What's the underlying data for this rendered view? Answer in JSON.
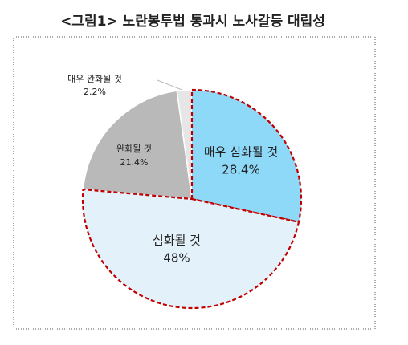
{
  "chart_data": {
    "type": "pie",
    "title": "<그림1> 노란봉투법 통과시 노사갈등 대립성",
    "categories": [
      "매우 심화될 것",
      "심화될 것",
      "완화될 것",
      "매우 완화될 것"
    ],
    "values": [
      28.4,
      48,
      21.4,
      2.2
    ],
    "value_labels": [
      "28.4%",
      "48%",
      "21.4%",
      "2.2%"
    ],
    "colors": [
      "#8fd9f8",
      "#e3f1fb",
      "#b9b9b9",
      "#e6e6e6"
    ],
    "edgecolors": [
      "#c00000",
      "#c00000",
      "#ffffff",
      "#ffffff"
    ]
  }
}
